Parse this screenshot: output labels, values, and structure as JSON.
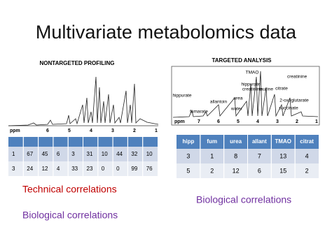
{
  "title": "Multivariate metabolomics data",
  "left": {
    "heading": "NONTARGETED PROFILING",
    "spectrum": {
      "axis_label": "ppm",
      "ticks": [
        "6",
        "5",
        "4",
        "3",
        "2",
        "1"
      ]
    },
    "table": {
      "rows": [
        [
          "1",
          "67",
          "45",
          "6",
          "3",
          "31",
          "10",
          "44",
          "32",
          "10"
        ],
        [
          "3",
          "24",
          "12",
          "4",
          "33",
          "23",
          "0",
          "0",
          "99",
          "76"
        ]
      ]
    },
    "notes": [
      "Technical correlations",
      "Biological correlations"
    ]
  },
  "right": {
    "heading": "TARGETED ANALYSIS",
    "spectrum": {
      "axis_label": "ppm",
      "ticks": [
        "7",
        "6",
        "5",
        "4",
        "3",
        "2",
        "1"
      ],
      "peak_labels": [
        "TMAO",
        "creatinine",
        "hippurate",
        "allantoin",
        "urea",
        "water",
        "fumarate",
        "hippurate",
        "creatinine",
        "taurine",
        "citrate",
        "2-oxoglutarate",
        "succinate"
      ]
    },
    "table": {
      "header": [
        "hipp",
        "fum",
        "urea",
        "allant",
        "TMAO",
        "citrat"
      ],
      "rows": [
        [
          "3",
          "1",
          "8",
          "7",
          "13",
          "4"
        ],
        [
          "5",
          "2",
          "12",
          "6",
          "15",
          "2"
        ]
      ]
    },
    "note": "Biological correlations"
  }
}
